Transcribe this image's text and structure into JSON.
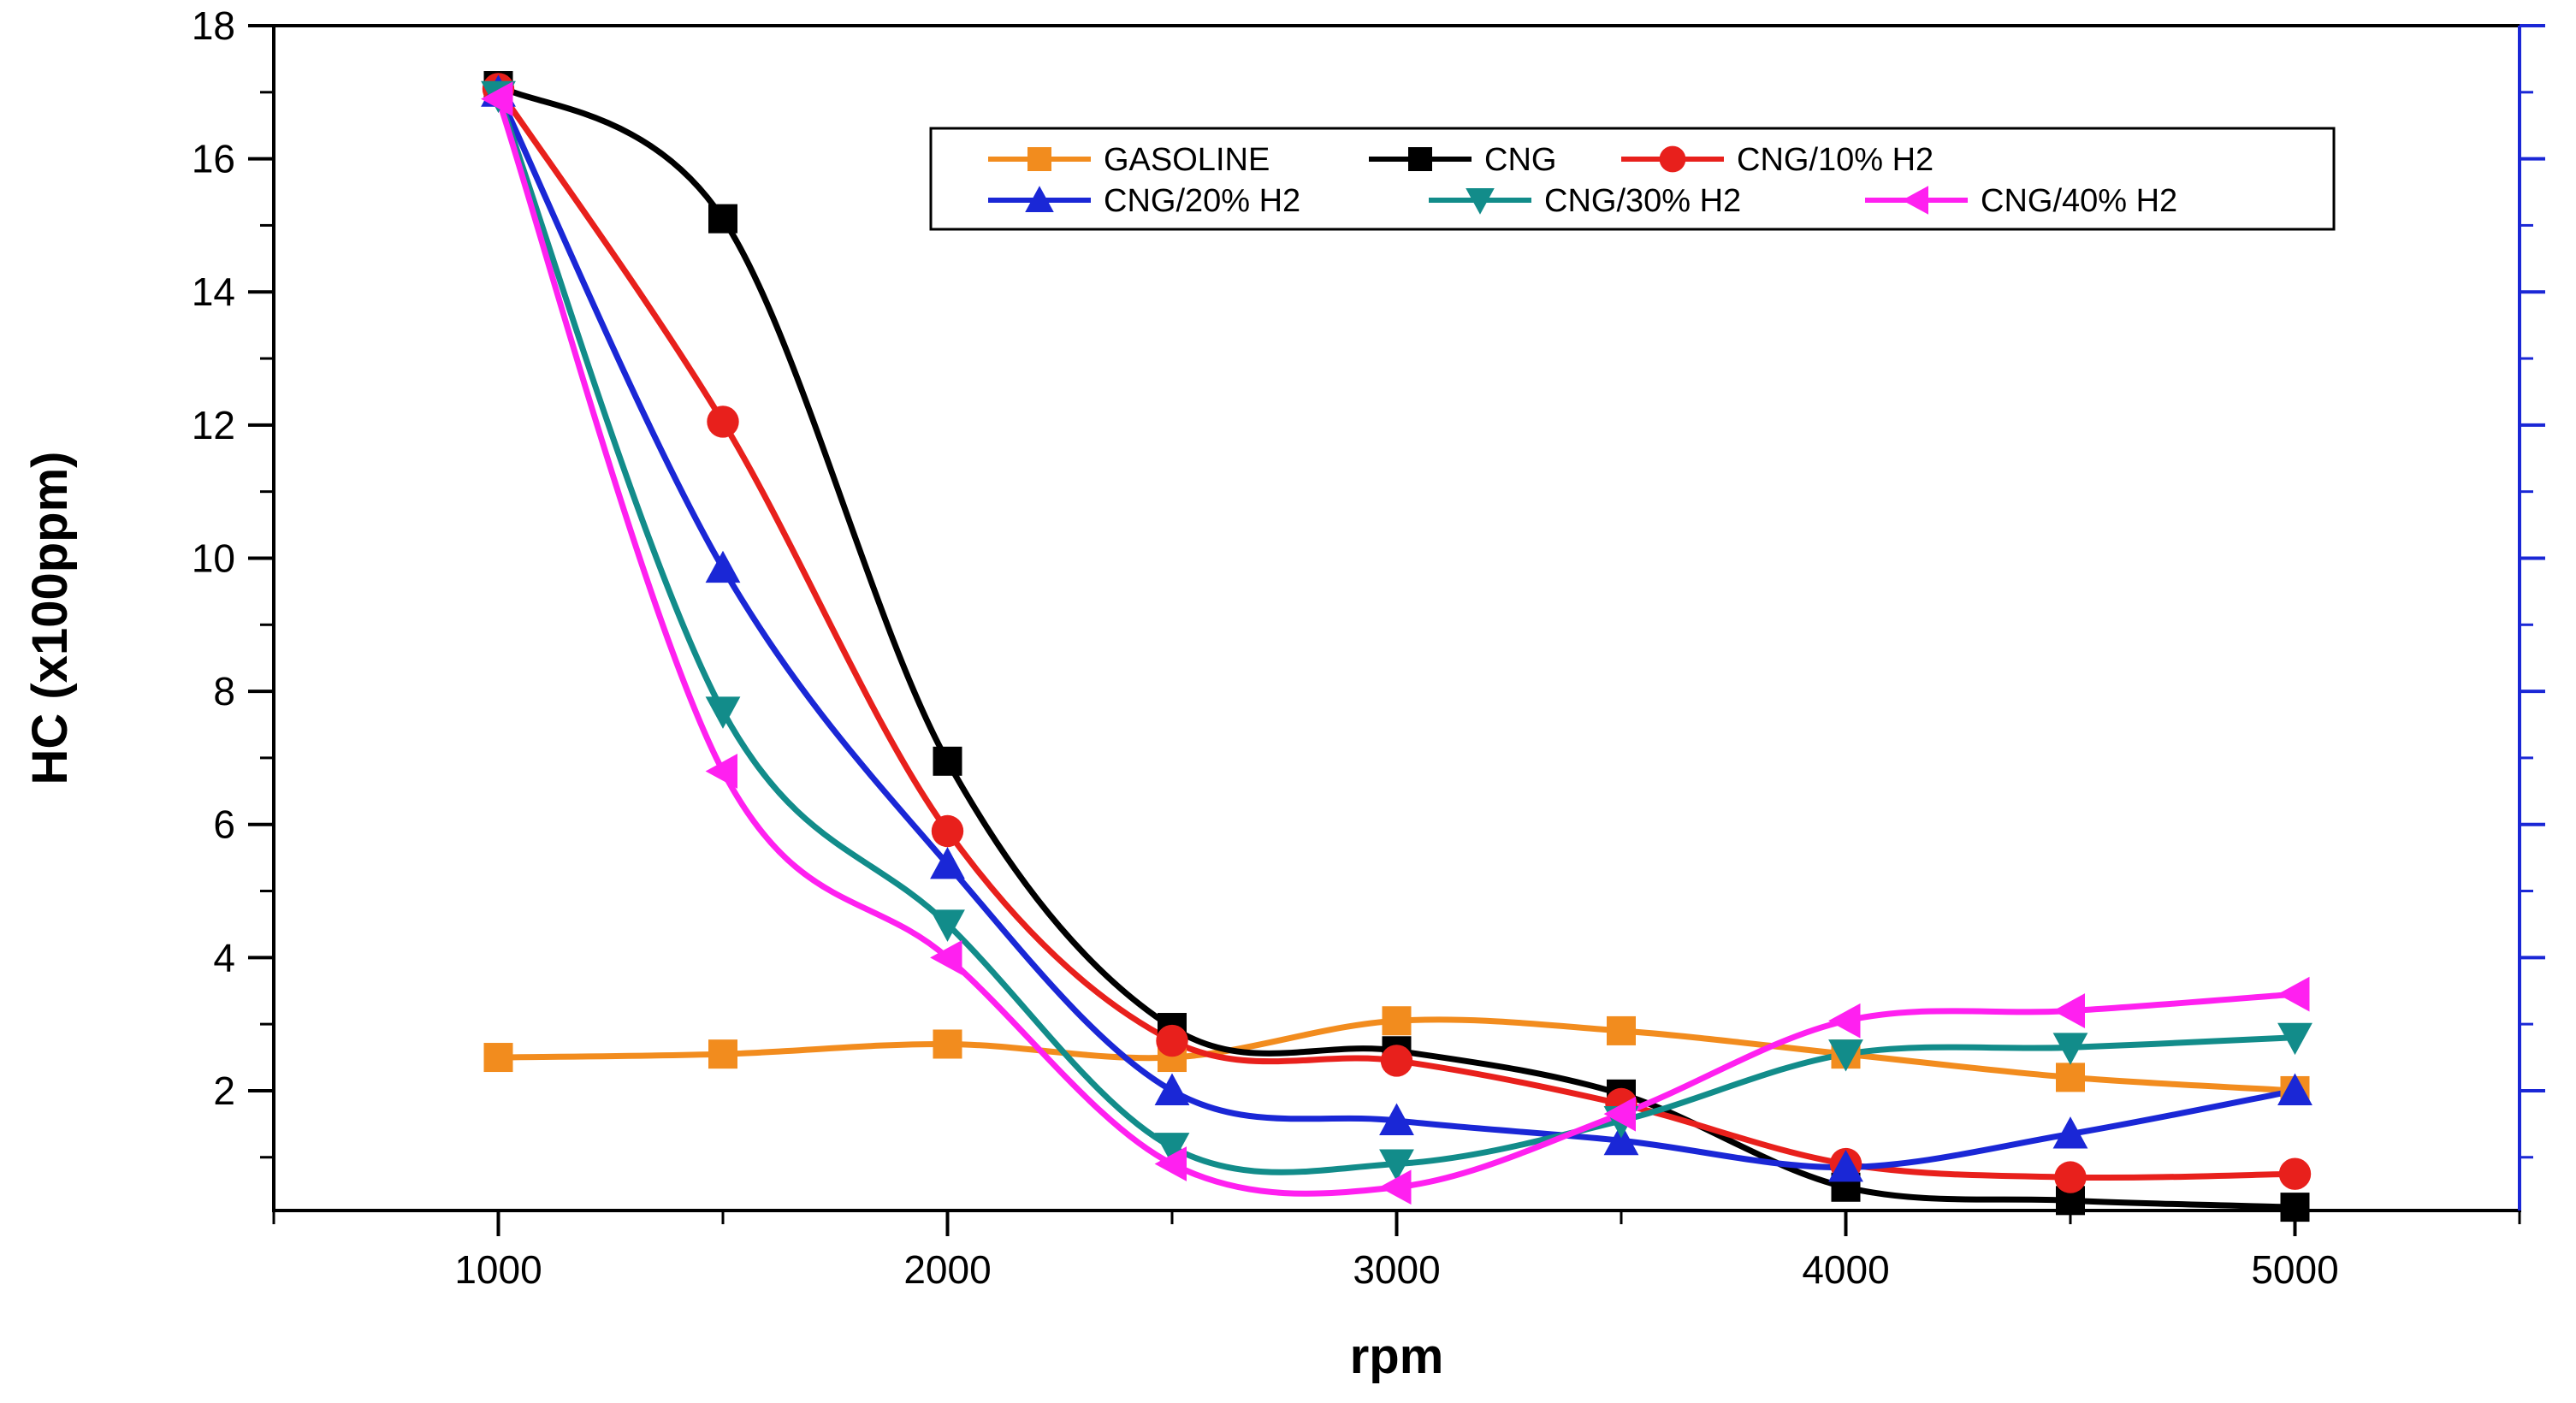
{
  "chart_data": {
    "type": "line",
    "title": "",
    "xlabel": "rpm",
    "ylabel": "HC (x100ppm)",
    "xlim": [
      500,
      5500
    ],
    "ylim": [
      0.2,
      18
    ],
    "xticks": [
      1000,
      2000,
      3000,
      4000,
      5000
    ],
    "yticks": [
      2,
      4,
      6,
      8,
      10,
      12,
      14,
      16,
      18
    ],
    "x": [
      1000,
      1500,
      2000,
      2500,
      3000,
      3500,
      4000,
      4500,
      5000
    ],
    "grid": false,
    "legend_position": "top-right",
    "series": [
      {
        "name": "GASOLINE",
        "color": "#f28c1e",
        "marker": "square",
        "values": [
          2.5,
          2.55,
          2.7,
          2.5,
          3.05,
          2.9,
          2.55,
          2.2,
          2.0
        ]
      },
      {
        "name": "CNG",
        "color": "#000000",
        "marker": "square",
        "values": [
          17.1,
          15.1,
          6.95,
          2.95,
          2.6,
          1.95,
          0.55,
          0.35,
          0.25
        ]
      },
      {
        "name": "CNG/10%  H2",
        "color": "#e8201c",
        "marker": "circle",
        "values": [
          17.05,
          12.05,
          5.9,
          2.75,
          2.45,
          1.8,
          0.9,
          0.7,
          0.75
        ]
      },
      {
        "name": "CNG/20% H2",
        "color": "#1a27d6",
        "marker": "triangle-up",
        "values": [
          17.0,
          9.85,
          5.4,
          2.0,
          1.55,
          1.25,
          0.85,
          1.35,
          2.0
        ]
      },
      {
        "name": "CNG/30% H2",
        "color": "#128c8a",
        "marker": "triangle-down",
        "values": [
          16.95,
          7.7,
          4.5,
          1.15,
          0.9,
          1.55,
          2.55,
          2.65,
          2.8
        ]
      },
      {
        "name": "CNG/40% H2",
        "color": "#ff20f0",
        "marker": "triangle-left",
        "values": [
          16.9,
          6.8,
          4.0,
          0.9,
          0.55,
          1.65,
          3.05,
          3.2,
          3.45
        ]
      }
    ]
  }
}
